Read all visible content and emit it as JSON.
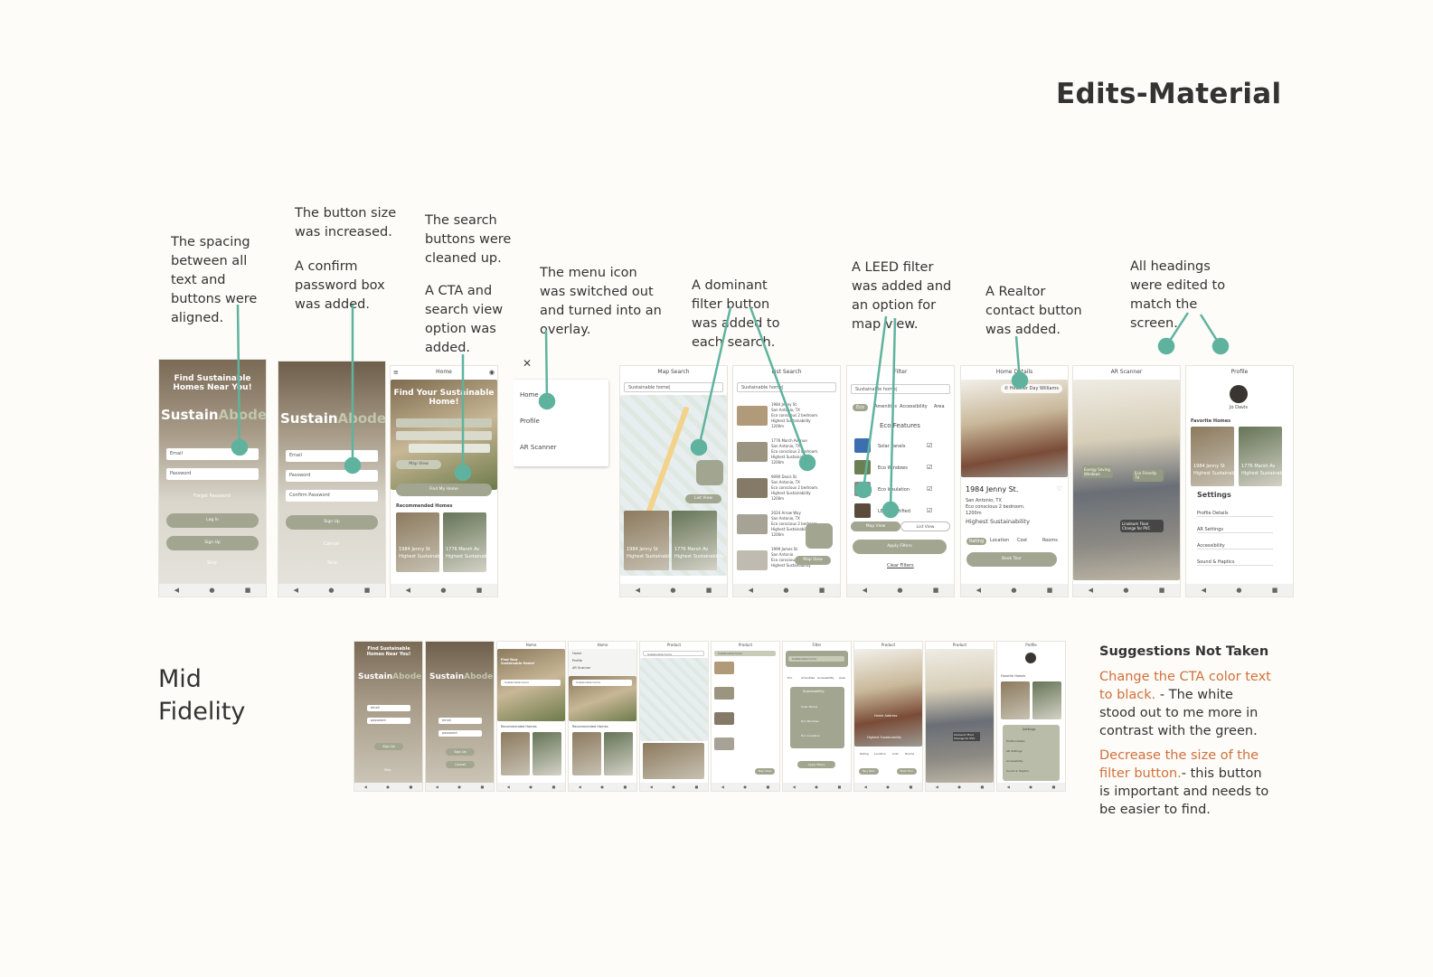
{
  "title": "Edits-Material",
  "annotations": [
    "The spacing between all text and buttons were aligned.",
    "The button size was increased.",
    "A confirm password box was added.",
    "The search buttons were cleaned up.",
    "A CTA and search view option was added.",
    "The menu icon was switched out and turned into an overlay.",
    "A dominant filter button was added to each search.",
    "A LEED filter was added and an option for map view.",
    "A Realtor contact button was added.",
    "All headings were edited to match the screen."
  ],
  "mid_fidelity_label": "Mid Fidelity",
  "suggestions": {
    "heading": "Suggestions Not Taken",
    "items": [
      {
        "highlight": "Change the CTA color text to black.",
        "text": " - The white stood out to me more in contrast with the green."
      },
      {
        "highlight": "Decrease the size of the filter button.",
        "text": "- this button is important and needs to be easier to find."
      }
    ]
  },
  "screens": {
    "login": {
      "headline": "Find Sustainable Homes Near You!",
      "brand_a": "Sustain",
      "brand_b": "Abode",
      "email": "Email",
      "password": "Password",
      "forgot": "Forgot Password",
      "login": "Log In",
      "signup": "Sign Up",
      "skip": "Skip"
    },
    "signup": {
      "email": "Email",
      "password": "Password",
      "confirm": "Confirm Password",
      "signup": "Sign Up",
      "cancel": "Cancel",
      "skip": "Skip"
    },
    "home": {
      "header": "Home",
      "hero": "Find Your Sustainable Home!",
      "cta": "Find My Home",
      "map_view": "Map View",
      "recommended": "Recommended Homes",
      "card1": "1984 Jenny St",
      "card1_sub": "Highest Sustainability",
      "card2": "1776 Marsh Av",
      "card2_sub": "Highest Sustainability"
    },
    "menu": {
      "close": "✕",
      "items": [
        "Home",
        "Profile",
        "AR Scanner"
      ]
    },
    "map": {
      "header": "Map Search",
      "search": "Sustainable home|",
      "list_view": "List View",
      "card1": "1984 Jenny St",
      "card1_sub": "Highest Sustainability",
      "card2": "1776 Marsh Av",
      "card2_sub": "Highest Sustainability"
    },
    "list": {
      "header": "List Search",
      "search": "Sustainable home|",
      "map_view": "Map View",
      "items": [
        {
          "addr": "1984 Jenny St.",
          "l1": "San Antonio, TX",
          "l2": "Eco conscious 2 bedroom.",
          "l3": "Highest Sustainability",
          "l4": "1200m"
        },
        {
          "addr": "1776 March Avenue",
          "l1": "San Antonio, TX",
          "l2": "Eco conscious 2 bedroom.",
          "l3": "Highest Sustainability",
          "l4": "1200m"
        },
        {
          "addr": "9090 Davis St.",
          "l1": "San Antonio, TX",
          "l2": "Eco conscious 2 bedroom.",
          "l3": "Highest Sustainability",
          "l4": "1200m"
        },
        {
          "addr": "2024 Arrow Way",
          "l1": "San Antonio, TX",
          "l2": "Eco conscious 2 bedroom.",
          "l3": "Highest Sustainability",
          "l4": "1200m"
        },
        {
          "addr": "1999 James St.",
          "l1": "San Antonio",
          "l2": "Eco conscious",
          "l3": "Highest Sustainability",
          "l4": ""
        }
      ]
    },
    "filter": {
      "header": "Filter",
      "search": "Sustainable home|",
      "chips": [
        "Eco",
        "Amenities",
        "Accessibility",
        "Area"
      ],
      "section": "Eco Features",
      "features": [
        "Solar Panels",
        "Eco Windows",
        "Eco Insulation",
        "LEED Certified"
      ],
      "map_view": "Map View",
      "list_view": "List View",
      "apply": "Apply Filters",
      "clear": "Clear Filters"
    },
    "details": {
      "header": "Home Details",
      "realtor": "Heather Day Williams",
      "addr": "1984 Jenny St.",
      "l1": "San Antonio, TX",
      "l2": "Eco conscious 2 bedroom.",
      "l3": "1200m",
      "l4": "Highest Sustainability",
      "tabs": [
        "Rating",
        "Location",
        "Cost",
        "Rooms"
      ],
      "tour": "Book Tour"
    },
    "ar": {
      "header": "AR Scanner",
      "tag1": "Energy Saving Windows",
      "tag2": "Eco Friendly TV",
      "tag3": "Linoleum Floor Change for PVC"
    },
    "profile": {
      "header": "Profile",
      "name": "Jo Davis",
      "favorites": "Favorite Homes",
      "fav1": "1984 Jenny St",
      "fav1_sub": "Highest Sustainability",
      "fav2": "1776 Marsh Av",
      "fav2_sub": "Highest Sustainability",
      "settings": "Settings",
      "rows": [
        "Profile Details",
        "AR Settings",
        "Accessibility",
        "Sound & Haptics"
      ]
    }
  },
  "mid_screens": {
    "login": {
      "headline": "Find Sustainable Homes Near You!",
      "brand_a": "Sustain",
      "brand_b": "Abode",
      "email": "email",
      "password": "password",
      "signup": "Sign Up",
      "skip": "Skip"
    },
    "signup": {
      "brand_a": "Sustain",
      "brand_b": "Abode",
      "email": "email",
      "password": "password",
      "signup": "Sign Up",
      "cancel": "Cancel"
    },
    "home": {
      "header": "Home",
      "hero": "Find Your Sustainable Home!",
      "search": "Sustainable home",
      "recommended": "Recommended Homes"
    },
    "home_menu": {
      "header": "Home",
      "items": [
        "Home",
        "Profile",
        "AR Scanner"
      ],
      "search": "Sustainable home",
      "recommended": "Recommended Homes"
    },
    "product_map": {
      "header": "Product",
      "search": "Sustainable home"
    },
    "product_list": {
      "header": "Product",
      "search": "Sustainable home",
      "map_view": "Map View"
    },
    "filter": {
      "header": "Filter",
      "search": "Sustainable home",
      "chips": [
        "Eco",
        "Amenities",
        "Accessibility",
        "Area"
      ],
      "section": "Sustainability",
      "features": [
        "Solar Panels",
        "Eco Windows",
        "Eco Insulation"
      ],
      "apply": "Apply Filters"
    },
    "product_detail": {
      "header": "Product",
      "addr": "Home Address",
      "sub": "Highest Sustainability",
      "tabs": [
        "Rating",
        "Location",
        "Cost",
        "Rooms"
      ],
      "btn1": "Buy Now",
      "btn2": "Book Tour"
    },
    "product_ar": {
      "header": "Product",
      "tag": "Linoleum Floor Change for PVC"
    },
    "profile": {
      "header": "Profile",
      "favorites": "Favorite Homes",
      "settings": "Settings",
      "rows": [
        "Profile Details",
        "AR Settings",
        "Accessibility",
        "Sound & Haptics"
      ]
    }
  },
  "colors": {
    "accent": "#5fb39e",
    "sage": "#a2a690",
    "highlight": "#d2703b",
    "background": "#fdfcf8"
  }
}
